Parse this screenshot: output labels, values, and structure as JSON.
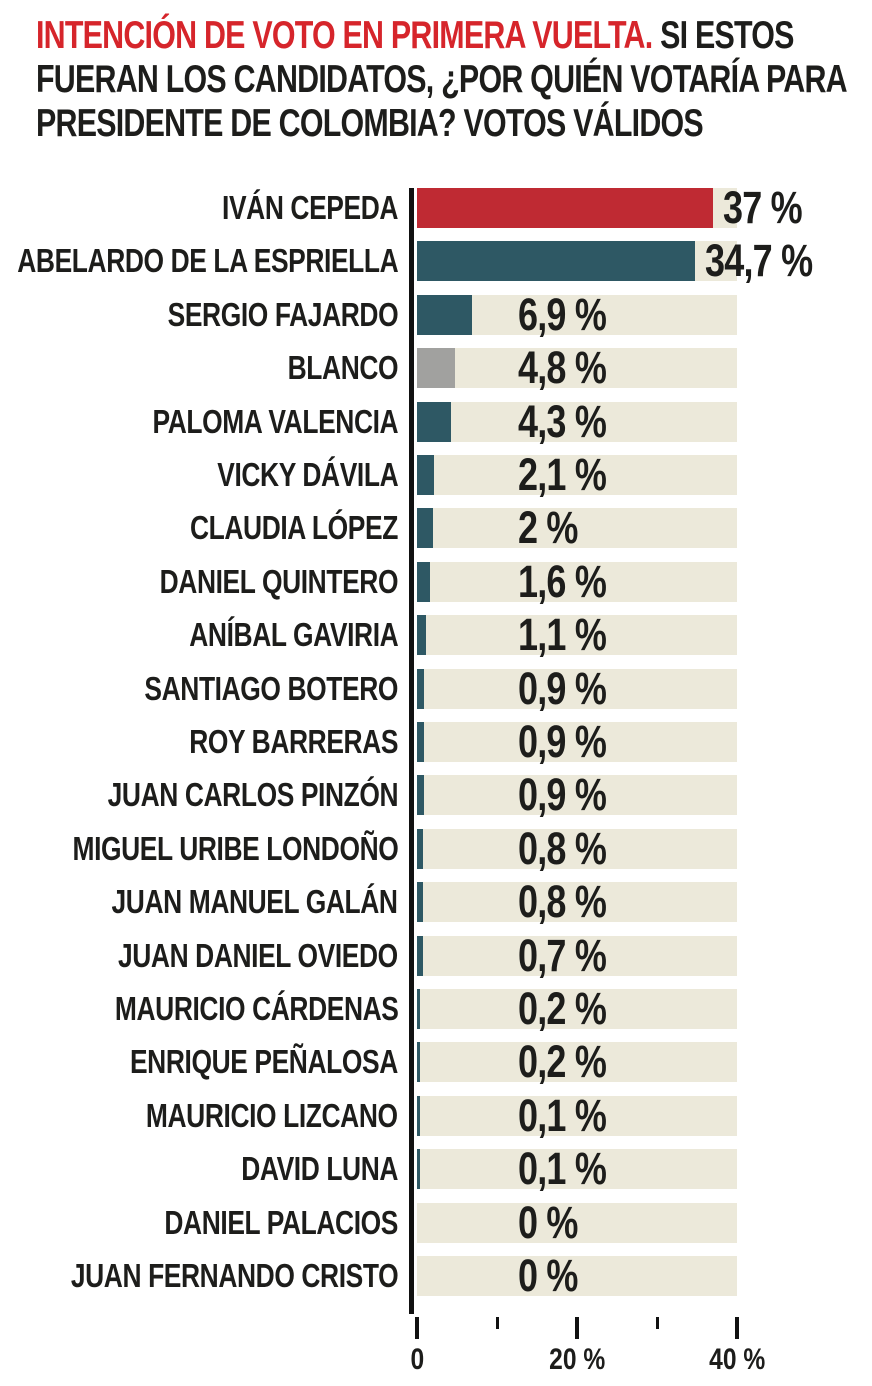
{
  "title": {
    "lines": [
      {
        "red": "INTENCIÓN DE VOTO EN PRIMERA VUELTA.",
        "black": " SI ESTOS"
      },
      {
        "black": "FUERAN LOS CANDIDATOS, ¿POR QUIÉN VOTARÍA PARA"
      },
      {
        "black": "PRESIDENTE DE COLOMBIA? VOTOS VÁLIDOS"
      }
    ]
  },
  "colors": {
    "title_highlight": "#d6252b",
    "text": "#1d1d1b",
    "bar_leader": "#bf2a33",
    "bar_default": "#2e5864",
    "bar_blanco": "#a1a19f",
    "track": "#ece9da",
    "axis": "#111111"
  },
  "chart_data": {
    "type": "bar",
    "orientation": "horizontal",
    "title": "INTENCIÓN DE VOTO EN PRIMERA VUELTA. SI ESTOS FUERAN LOS CANDIDATOS, ¿POR QUIÉN VOTARÍA PARA PRESIDENTE DE COLOMBIA? VOTOS VÁLIDOS",
    "xlabel": "",
    "ylabel": "",
    "xlim": [
      0,
      40
    ],
    "grid": false,
    "legend": "none",
    "value_format": "comma-decimal percent",
    "rows": [
      {
        "name": "IVÁN CEPEDA",
        "value": 37,
        "label": "37 %",
        "color": "#bf2a33"
      },
      {
        "name": "ABELARDO DE LA ESPRIELLA",
        "value": 34.7,
        "label": "34,7 %",
        "color": "#2e5864"
      },
      {
        "name": "SERGIO FAJARDO",
        "value": 6.9,
        "label": "6,9 %",
        "color": "#2e5864"
      },
      {
        "name": "BLANCO",
        "value": 4.8,
        "label": "4,8 %",
        "color": "#a1a19f"
      },
      {
        "name": "PALOMA VALENCIA",
        "value": 4.3,
        "label": "4,3 %",
        "color": "#2e5864"
      },
      {
        "name": "VICKY DÁVILA",
        "value": 2.1,
        "label": "2,1 %",
        "color": "#2e5864"
      },
      {
        "name": "CLAUDIA LÓPEZ",
        "value": 2,
        "label": "2 %",
        "color": "#2e5864"
      },
      {
        "name": "DANIEL QUINTERO",
        "value": 1.6,
        "label": "1,6 %",
        "color": "#2e5864"
      },
      {
        "name": "ANÍBAL GAVIRIA",
        "value": 1.1,
        "label": "1,1 %",
        "color": "#2e5864"
      },
      {
        "name": "SANTIAGO BOTERO",
        "value": 0.9,
        "label": "0,9 %",
        "color": "#2e5864"
      },
      {
        "name": "ROY BARRERAS",
        "value": 0.9,
        "label": "0,9 %",
        "color": "#2e5864"
      },
      {
        "name": "JUAN CARLOS PINZÓN",
        "value": 0.9,
        "label": "0,9 %",
        "color": "#2e5864"
      },
      {
        "name": "MIGUEL URIBE LONDOÑO",
        "value": 0.8,
        "label": "0,8 %",
        "color": "#2e5864"
      },
      {
        "name": "JUAN MANUEL GALÁN",
        "value": 0.8,
        "label": "0,8 %",
        "color": "#2e5864"
      },
      {
        "name": "JUAN DANIEL OVIEDO",
        "value": 0.7,
        "label": "0,7 %",
        "color": "#2e5864"
      },
      {
        "name": "MAURICIO CÁRDENAS",
        "value": 0.2,
        "label": "0,2 %",
        "color": "#2e5864"
      },
      {
        "name": "ENRIQUE PEÑALOSA",
        "value": 0.2,
        "label": "0,2 %",
        "color": "#2e5864"
      },
      {
        "name": "MAURICIO LIZCANO",
        "value": 0.1,
        "label": "0,1 %",
        "color": "#2e5864"
      },
      {
        "name": "DAVID LUNA",
        "value": 0.1,
        "label": "0,1 %",
        "color": "#2e5864"
      },
      {
        "name": "DANIEL PALACIOS",
        "value": 0,
        "label": "0 %",
        "color": "#2e5864"
      },
      {
        "name": "JUAN FERNANDO CRISTO",
        "value": 0,
        "label": "0 %",
        "color": "#2e5864"
      }
    ],
    "axis_ticks": [
      {
        "x": 0,
        "label": "0",
        "major": true
      },
      {
        "x": 10,
        "label": "",
        "major": false
      },
      {
        "x": 20,
        "label": "20 %",
        "major": true
      },
      {
        "x": 30,
        "label": "",
        "major": false
      },
      {
        "x": 40,
        "label": "40 %",
        "major": true
      }
    ]
  }
}
